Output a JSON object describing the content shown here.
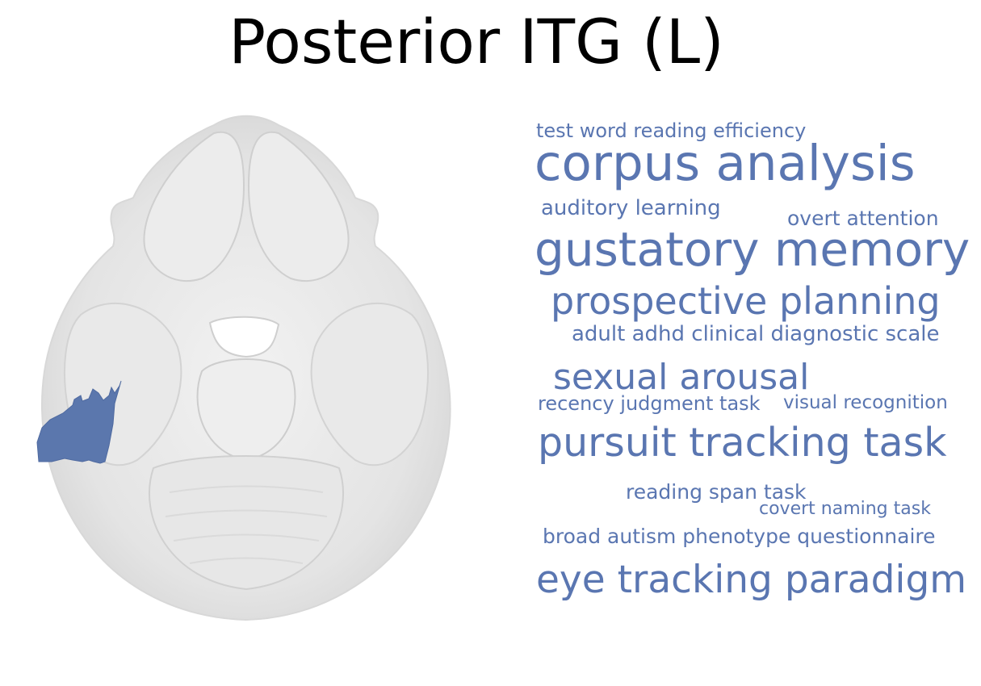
{
  "title": "Posterior ITG (L)",
  "colors": {
    "term": "#5a76b1",
    "region_highlight": "#5b77ad",
    "brain_fill": "#e6e6e6",
    "brain_shadow": "#cfcfcf"
  },
  "word_cloud": [
    {
      "id": "t1",
      "text": "test word reading efficiency"
    },
    {
      "id": "t2",
      "text": "corpus analysis"
    },
    {
      "id": "t3",
      "text": "auditory learning"
    },
    {
      "id": "t4",
      "text": "overt attention"
    },
    {
      "id": "t5",
      "text": "gustatory memory"
    },
    {
      "id": "t6",
      "text": "prospective planning"
    },
    {
      "id": "t7",
      "text": "adult adhd clinical diagnostic scale"
    },
    {
      "id": "t8",
      "text": "sexual arousal"
    },
    {
      "id": "t9",
      "text": "recency judgment task"
    },
    {
      "id": "t10",
      "text": "visual recognition"
    },
    {
      "id": "t11",
      "text": "pursuit tracking task"
    },
    {
      "id": "t12",
      "text": "reading span task"
    },
    {
      "id": "t13",
      "text": "covert naming task"
    },
    {
      "id": "t14",
      "text": "broad autism phenotype questionnaire"
    },
    {
      "id": "t15",
      "text": "eye tracking paradigm"
    }
  ]
}
